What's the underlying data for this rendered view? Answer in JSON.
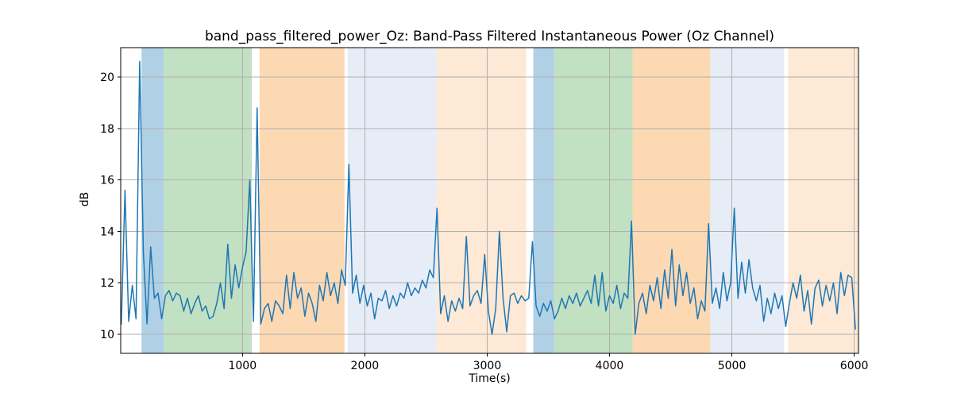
{
  "figure": {
    "background": "#ffffff"
  },
  "chart_data": {
    "type": "line",
    "title": "band_pass_filtered_power_Oz: Band-Pass Filtered Instantaneous Power (Oz Channel)",
    "xlabel": "Time(s)",
    "ylabel": "dB",
    "xlim": [
      5,
      6035
    ],
    "ylim": [
      9.26,
      21.14
    ],
    "xticks": [
      1000,
      2000,
      3000,
      4000,
      5000,
      6000
    ],
    "yticks": [
      10,
      12,
      14,
      16,
      18,
      20
    ],
    "grid": true,
    "grid_color": "#b0b0b0",
    "spine_color": "#000000",
    "line_color": "#1f77b4",
    "line_width": 1.5,
    "legend": "none",
    "bands": [
      {
        "start": 175,
        "end": 357,
        "color": "#b0d0e6"
      },
      {
        "start": 357,
        "end": 1077,
        "color": "#c2e0c2"
      },
      {
        "start": 1140,
        "end": 1834,
        "color": "#fdd9b3"
      },
      {
        "start": 1860,
        "end": 2586,
        "color": "#e6edf7"
      },
      {
        "start": 2586,
        "end": 3319,
        "color": "#fde9d6"
      },
      {
        "start": 3377,
        "end": 3546,
        "color": "#b0d0e6"
      },
      {
        "start": 3546,
        "end": 4190,
        "color": "#c2e0c2"
      },
      {
        "start": 4190,
        "end": 4824,
        "color": "#fdd9b3"
      },
      {
        "start": 4824,
        "end": 5427,
        "color": "#e6edf7"
      },
      {
        "start": 5460,
        "end": 6035,
        "color": "#fde9d6"
      }
    ],
    "series": {
      "name": "band_pass_filtered_power_Oz",
      "x_start": 10,
      "x_step": 30,
      "y": [
        10.4,
        15.6,
        10.5,
        11.9,
        10.6,
        20.6,
        13.2,
        10.4,
        13.4,
        11.4,
        11.6,
        10.6,
        11.5,
        11.7,
        11.3,
        11.6,
        11.5,
        10.9,
        11.4,
        10.8,
        11.2,
        11.5,
        10.9,
        11.1,
        10.6,
        10.7,
        11.2,
        12.0,
        11.0,
        13.5,
        11.4,
        12.7,
        11.8,
        12.6,
        13.2,
        16.0,
        10.5,
        18.8,
        10.4,
        11.0,
        11.2,
        10.5,
        11.3,
        11.1,
        10.8,
        12.3,
        11.0,
        12.4,
        11.4,
        11.8,
        10.7,
        11.6,
        11.2,
        10.5,
        11.9,
        11.3,
        12.4,
        11.5,
        12.0,
        11.2,
        12.5,
        11.9,
        16.6,
        11.6,
        12.3,
        11.2,
        11.9,
        11.1,
        11.6,
        10.6,
        11.4,
        11.3,
        11.7,
        11.0,
        11.5,
        11.1,
        11.6,
        11.4,
        12.0,
        11.5,
        11.8,
        11.6,
        12.1,
        11.8,
        12.5,
        12.2,
        14.9,
        10.8,
        11.5,
        10.5,
        11.3,
        10.9,
        11.4,
        11.0,
        13.8,
        11.1,
        11.5,
        11.7,
        11.2,
        13.1,
        10.9,
        10.0,
        11.0,
        14.0,
        11.4,
        10.1,
        11.5,
        11.6,
        11.2,
        11.5,
        11.3,
        11.4,
        13.6,
        11.1,
        10.7,
        11.2,
        10.9,
        11.3,
        10.6,
        10.9,
        11.4,
        11.0,
        11.5,
        11.2,
        11.6,
        11.1,
        11.4,
        11.7,
        11.2,
        12.3,
        11.1,
        12.4,
        10.9,
        11.5,
        11.2,
        11.9,
        11.0,
        11.6,
        11.4,
        14.4,
        10.0,
        11.2,
        11.6,
        10.8,
        11.9,
        11.3,
        12.2,
        11.0,
        12.5,
        11.4,
        13.3,
        11.1,
        12.7,
        11.5,
        12.4,
        11.2,
        11.8,
        10.6,
        11.3,
        10.9,
        14.3,
        11.2,
        11.8,
        11.0,
        12.4,
        11.3,
        12.0,
        14.9,
        11.4,
        12.8,
        11.6,
        12.9,
        11.8,
        11.3,
        11.9,
        10.5,
        11.4,
        10.8,
        11.6,
        11.0,
        11.5,
        10.3,
        11.2,
        12.0,
        11.4,
        12.3,
        10.9,
        11.7,
        10.4,
        11.8,
        12.1,
        11.1,
        11.9,
        11.3,
        12.0,
        10.8,
        12.4,
        11.5,
        12.3,
        12.2,
        10.2
      ]
    }
  }
}
